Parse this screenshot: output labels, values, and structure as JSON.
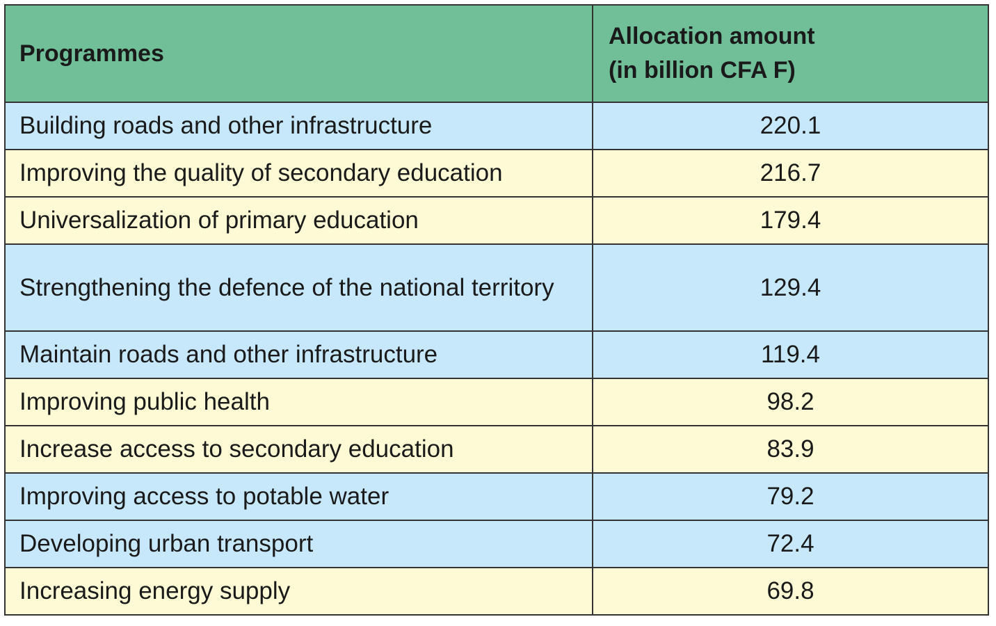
{
  "table": {
    "header": {
      "programmes": "Programmes",
      "amount_line1": "Allocation amount",
      "amount_line2": "(in billion CFA F)"
    },
    "rows": [
      {
        "programme": "Building roads and other infrastructure",
        "amount": "220.1",
        "color": "#c7e8fb"
      },
      {
        "programme": "Improving the quality of secondary education",
        "amount": "216.7",
        "color": "#fdfad5"
      },
      {
        "programme": "Universalization of primary education",
        "amount": "179.4",
        "color": "#fdfad5"
      },
      {
        "programme": "Strengthening the defence of the national territory",
        "amount": "129.4",
        "color": "#c7e8fb"
      },
      {
        "programme": "Maintain roads and other infrastructure",
        "amount": "119.4",
        "color": "#c7e8fb"
      },
      {
        "programme": "Improving public health",
        "amount": "98.2",
        "color": "#fdfad5"
      },
      {
        "programme": "Increase access to secondary education",
        "amount": "83.9",
        "color": "#fdfad5"
      },
      {
        "programme": "Improving access to potable water",
        "amount": "79.2",
        "color": "#c7e8fb"
      },
      {
        "programme": "Developing urban transport",
        "amount": "72.4",
        "color": "#c7e8fb"
      },
      {
        "programme": "Increasing energy supply",
        "amount": "69.8",
        "color": "#fdfad5"
      }
    ]
  },
  "colors": {
    "header_bg": "#70bf99",
    "blue_row": "#c7e8fb",
    "yellow_row": "#fdfad5",
    "border": "#333333"
  }
}
